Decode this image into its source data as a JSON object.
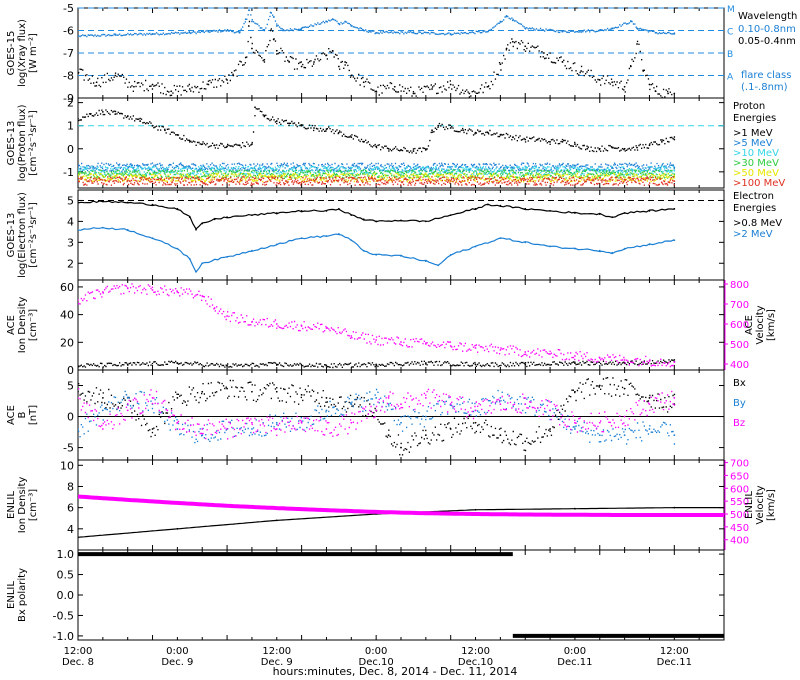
{
  "figure": {
    "footer": "hours:minutes, Dec.  8, 2014 - Dec. 11, 2014",
    "colors": {
      "black": "#000000",
      "blue": "#1a7fd4",
      "magenta": "#ff00ff",
      "cyan": "#33d6e8",
      "green": "#2ecc40",
      "yellow": "#e6e600",
      "orange": "#ff8800",
      "red": "#e03020",
      "dash": "#1f8be0"
    },
    "time_ticks": [
      {
        "hm": "12:00",
        "day": "Dec. 8"
      },
      {
        "hm": "0:00",
        "day": "Dec. 9"
      },
      {
        "hm": "12:00",
        "day": "Dec. 9"
      },
      {
        "hm": "0:00",
        "day": "Dec.10"
      },
      {
        "hm": "12:00",
        "day": "Dec.10"
      },
      {
        "hm": "0:00",
        "day": "Dec.11"
      },
      {
        "hm": "12:00",
        "day": "Dec.11"
      }
    ]
  },
  "chart_data": [
    {
      "type": "line",
      "panel": "goes15-xray",
      "ylabel_lines": [
        "GOES-15",
        "log(Xray flux)",
        "[W m⁻²]"
      ],
      "ylim": [
        -9,
        -5
      ],
      "yticks": [
        -9,
        -8,
        -7,
        -6,
        -5
      ],
      "log_scale": true,
      "flare_class_lines": [
        {
          "label": "A",
          "value": -8
        },
        {
          "label": "B",
          "value": -7
        },
        {
          "label": "C",
          "value": -6
        },
        {
          "label": "M",
          "value": -5
        }
      ],
      "legend": {
        "title": "Wavelength",
        "entries": [
          "0.10-0.8nm",
          "0.05-0.4nm"
        ],
        "note_lines": [
          "flare class",
          "(.1-.8nm)"
        ]
      },
      "x_unit": "hours since Dec. 8 12:00",
      "series": [
        {
          "name": "0.10-0.8nm",
          "color": "blue",
          "x": [
            0,
            6,
            12,
            18,
            21,
            24,
            26,
            27,
            27.5,
            28,
            30,
            31,
            31.5,
            32,
            33,
            36,
            40,
            41,
            42,
            43,
            44,
            46,
            48,
            54,
            60,
            66,
            68,
            69,
            70,
            72,
            78,
            84,
            86,
            89,
            90,
            93,
            96
          ],
          "y": [
            -6.25,
            -6.2,
            -6.15,
            -6.1,
            -6.05,
            -6.0,
            -6.1,
            -5.5,
            -5.1,
            -5.6,
            -6.0,
            -5.2,
            -5.4,
            -5.8,
            -6.0,
            -5.9,
            -5.6,
            -5.5,
            -5.7,
            -5.6,
            -5.8,
            -6.0,
            -6.1,
            -6.1,
            -6.15,
            -6.05,
            -5.6,
            -5.35,
            -5.55,
            -5.9,
            -6.05,
            -6.0,
            -5.9,
            -5.6,
            -5.9,
            -6.1,
            -6.15
          ]
        },
        {
          "name": "0.05-0.4nm",
          "color": "black",
          "x": [
            0,
            3,
            6,
            9,
            12,
            15,
            18,
            21,
            24,
            25,
            27,
            27.5,
            28,
            30,
            31,
            31.5,
            32,
            34,
            36,
            38,
            40,
            41,
            42,
            43,
            44,
            46,
            48,
            51,
            54,
            57,
            60,
            63,
            66,
            68,
            69,
            70,
            72,
            75,
            78,
            81,
            84,
            86,
            88,
            89,
            90,
            91,
            92,
            93,
            95,
            96
          ],
          "y": [
            -7.9,
            -8.3,
            -8.0,
            -8.5,
            -8.4,
            -8.7,
            -8.6,
            -8.4,
            -8.2,
            -8.0,
            -7.2,
            -5.8,
            -6.8,
            -7.3,
            -6.0,
            -6.4,
            -6.9,
            -7.4,
            -7.6,
            -7.4,
            -7.1,
            -6.9,
            -7.6,
            -7.4,
            -8.0,
            -8.3,
            -8.7,
            -8.5,
            -8.8,
            -8.6,
            -8.4,
            -8.8,
            -8.5,
            -7.5,
            -6.8,
            -6.5,
            -6.7,
            -7.0,
            -7.4,
            -7.8,
            -8.2,
            -8.3,
            -8.5,
            -7.6,
            -6.6,
            -7.8,
            -8.4,
            -8.7,
            -8.8,
            -8.8
          ]
        }
      ]
    },
    {
      "type": "scatter",
      "panel": "goes13-proton",
      "ylabel_lines": [
        "GOES-13",
        "log(Proton flux)",
        "[cm⁻²s⁻¹sr⁻¹]"
      ],
      "ylim": [
        -1.7,
        2.2
      ],
      "yticks": [
        -1,
        0,
        1,
        2
      ],
      "reference_line": 1,
      "legend": {
        "title_lines": [
          "Proton",
          "Energies"
        ],
        "entries": [
          ">1 MeV",
          ">5 MeV",
          ">10 MeV",
          ">30 MeV",
          ">50 MeV",
          ">100 MeV"
        ]
      },
      "series": [
        {
          "name": ">1 MeV",
          "color": "black",
          "x": [
            0,
            2,
            4,
            6,
            8,
            10,
            12,
            14,
            16,
            18,
            20,
            22,
            24,
            26,
            28,
            28.5,
            30,
            32,
            34,
            36,
            38,
            40,
            42,
            44,
            46,
            48,
            50,
            52,
            54,
            56,
            57,
            58,
            60,
            62,
            64,
            66,
            68,
            70,
            72,
            74,
            76,
            78,
            80,
            82,
            84,
            86,
            88,
            90,
            92,
            94,
            96
          ],
          "y": [
            1.3,
            1.5,
            1.6,
            1.5,
            1.4,
            1.2,
            1.0,
            0.8,
            0.6,
            0.3,
            0.2,
            0.15,
            0.1,
            0.15,
            0.2,
            1.8,
            1.4,
            1.2,
            1.1,
            1.0,
            0.9,
            0.85,
            0.7,
            0.5,
            0.3,
            0.1,
            0.0,
            -0.05,
            -0.1,
            -0.05,
            0.8,
            1.0,
            0.9,
            0.8,
            0.7,
            0.7,
            0.6,
            0.5,
            0.4,
            0.4,
            0.3,
            0.3,
            0.2,
            0.0,
            0.0,
            0.05,
            0.0,
            0.05,
            0.15,
            0.3,
            0.4
          ]
        },
        {
          "name": ">5 MeV",
          "color": "blue",
          "x": [
            0,
            96
          ],
          "y": [
            -0.8,
            -0.8
          ]
        },
        {
          "name": ">10 MeV",
          "color": "cyan",
          "x": [
            0,
            96
          ],
          "y": [
            -0.95,
            -0.95
          ]
        },
        {
          "name": ">30 MeV",
          "color": "green",
          "x": [
            0,
            96
          ],
          "y": [
            -1.1,
            -1.1
          ]
        },
        {
          "name": ">50 MeV",
          "color": "yellow",
          "x": [
            0,
            96
          ],
          "y": [
            -1.25,
            -1.25
          ]
        },
        {
          "name": ">100 MeV",
          "color": "red",
          "x": [
            0,
            96
          ],
          "y": [
            -1.4,
            -1.4
          ]
        }
      ]
    },
    {
      "type": "line",
      "panel": "goes13-electron",
      "ylabel_lines": [
        "GOES-13",
        "log(Electron flux)",
        "[cm⁻²s⁻¹sr⁻¹]"
      ],
      "ylim": [
        1.2,
        5.5
      ],
      "yticks": [
        2,
        3,
        4,
        5
      ],
      "reference_line": 5,
      "legend": {
        "title_lines": [
          "Electron",
          "Energies"
        ],
        "entries": [
          ">0.8 MeV",
          ">2 MeV"
        ]
      },
      "series": [
        {
          "name": ">0.8 MeV",
          "color": "black",
          "x": [
            0,
            4,
            8,
            12,
            16,
            18,
            19,
            20,
            22,
            24,
            28,
            32,
            36,
            40,
            42,
            44,
            46,
            48,
            52,
            56,
            60,
            64,
            66,
            68,
            72,
            76,
            80,
            84,
            86,
            88,
            92,
            96
          ],
          "y": [
            4.9,
            4.95,
            4.9,
            4.8,
            4.6,
            4.2,
            3.6,
            3.9,
            4.1,
            4.2,
            4.3,
            4.4,
            4.5,
            4.5,
            4.6,
            4.3,
            4.1,
            4.0,
            4.05,
            4.0,
            4.3,
            4.6,
            4.8,
            4.75,
            4.6,
            4.5,
            4.4,
            4.35,
            4.2,
            4.4,
            4.5,
            4.6
          ]
        },
        {
          "name": ">2 MeV",
          "color": "blue",
          "x": [
            0,
            4,
            8,
            12,
            16,
            18,
            19,
            20,
            24,
            28,
            32,
            36,
            40,
            42,
            44,
            46,
            48,
            52,
            56,
            58,
            60,
            64,
            68,
            72,
            76,
            80,
            84,
            86,
            88,
            92,
            96
          ],
          "y": [
            3.6,
            3.7,
            3.6,
            3.2,
            2.7,
            2.2,
            1.6,
            2.0,
            2.3,
            2.6,
            2.9,
            3.2,
            3.3,
            3.4,
            3.1,
            2.6,
            2.4,
            2.35,
            2.1,
            1.9,
            2.4,
            2.8,
            3.2,
            3.0,
            2.8,
            2.7,
            2.6,
            2.5,
            2.7,
            2.9,
            3.1
          ]
        }
      ]
    },
    {
      "type": "scatter",
      "panel": "ace-plasma",
      "ylabel_lines": [
        "ACE",
        "Ion Density",
        "[cm⁻³]"
      ],
      "ylabel_right_lines": [
        "ACE",
        "Velocity",
        "[km/s]"
      ],
      "ylim": [
        0,
        65
      ],
      "yticks": [
        0,
        20,
        40,
        60
      ],
      "ylim_right": [
        370,
        820
      ],
      "yticks_right": [
        400,
        500,
        600,
        700,
        800
      ],
      "series": [
        {
          "name": "Ion Density",
          "color": "black",
          "axis": "left",
          "x": [
            0,
            8,
            16,
            24,
            32,
            40,
            48,
            56,
            64,
            72,
            80,
            88,
            96
          ],
          "y": [
            3,
            4,
            5,
            3,
            4,
            3,
            4,
            5,
            4,
            4,
            5,
            5,
            6
          ]
        },
        {
          "name": "Velocity",
          "color": "magenta",
          "axis": "right",
          "x": [
            0,
            4,
            8,
            12,
            16,
            20,
            22,
            24,
            28,
            32,
            36,
            40,
            44,
            48,
            52,
            56,
            60,
            64,
            68,
            72,
            76,
            80,
            84,
            88,
            92,
            96
          ],
          "y": [
            720,
            760,
            780,
            770,
            760,
            740,
            680,
            640,
            610,
            600,
            590,
            580,
            540,
            520,
            510,
            500,
            490,
            480,
            470,
            460,
            450,
            440,
            430,
            420,
            415,
            410
          ]
        }
      ]
    },
    {
      "type": "scatter",
      "panel": "ace-magnetic-field",
      "ylabel_lines": [
        "ACE",
        "B",
        "[nT]"
      ],
      "ylim": [
        -7,
        7.5
      ],
      "yticks": [
        -5,
        0,
        5
      ],
      "zero_line": true,
      "legend": {
        "entries": [
          "Bx",
          "By",
          "Bz"
        ]
      },
      "series": [
        {
          "name": "Bx",
          "color": "black",
          "x": [
            0,
            4,
            8,
            12,
            16,
            20,
            24,
            28,
            32,
            36,
            40,
            44,
            48,
            50,
            52,
            56,
            60,
            64,
            68,
            72,
            76,
            80,
            84,
            88,
            92,
            96
          ],
          "y": [
            4,
            3,
            2,
            -2,
            3,
            4,
            4.5,
            4,
            4,
            3.5,
            3,
            2,
            1,
            -3,
            -5,
            -3,
            -2,
            -1,
            -3,
            -4,
            -2,
            4,
            5,
            4.5,
            3,
            2
          ]
        },
        {
          "name": "By",
          "color": "blue",
          "x": [
            0,
            4,
            8,
            12,
            16,
            20,
            24,
            28,
            32,
            36,
            40,
            44,
            48,
            50,
            52,
            56,
            60,
            64,
            68,
            72,
            76,
            80,
            84,
            88,
            92,
            96
          ],
          "y": [
            -2,
            1,
            3,
            2,
            -2,
            -3,
            -2,
            -2,
            -1,
            -1,
            1,
            2,
            3,
            2,
            -1,
            0,
            2,
            1,
            3,
            2,
            1,
            -2,
            -3,
            -3,
            -2,
            -3
          ]
        },
        {
          "name": "Bz",
          "color": "magenta",
          "x": [
            0,
            4,
            8,
            12,
            16,
            20,
            24,
            28,
            32,
            36,
            40,
            44,
            48,
            50,
            52,
            56,
            60,
            64,
            68,
            72,
            76,
            80,
            84,
            88,
            92,
            96
          ],
          "y": [
            3,
            -2,
            1,
            3,
            -1,
            -2,
            -2,
            -1,
            -2,
            -1,
            -2,
            -1,
            1,
            3,
            2,
            3,
            2,
            1,
            2,
            2,
            1,
            -1,
            -1,
            0,
            2,
            3
          ]
        }
      ]
    },
    {
      "type": "line",
      "panel": "enlil-plasma",
      "ylabel_lines": [
        "ENLIL",
        "Ion Density",
        "[cm⁻³]"
      ],
      "ylabel_right_lines": [
        "ENLIL",
        "Velocity",
        "[km/s]"
      ],
      "ylim": [
        2,
        10.5
      ],
      "yticks": [
        4,
        6,
        8,
        10
      ],
      "ylim_right": [
        360,
        710
      ],
      "yticks_right": [
        400,
        450,
        500,
        550,
        600,
        650,
        700
      ],
      "series": [
        {
          "name": "Ion Density",
          "color": "black",
          "axis": "left",
          "x": [
            0,
            16,
            32,
            48,
            64,
            80,
            96,
            104
          ],
          "y": [
            3.2,
            4.0,
            4.8,
            5.4,
            5.8,
            5.9,
            6.0,
            6.0
          ]
        },
        {
          "name": "Velocity",
          "color": "magenta",
          "axis": "right",
          "x": [
            0,
            8,
            16,
            24,
            32,
            40,
            48,
            56,
            64,
            72,
            80,
            88,
            96,
            104
          ],
          "y": [
            568,
            555,
            543,
            532,
            523,
            515,
            508,
            503,
            500,
            498,
            497,
            496,
            496,
            496
          ]
        }
      ]
    },
    {
      "type": "line",
      "panel": "enlil-polarity",
      "ylabel_lines": [
        "ENLIL",
        "Bx polarity"
      ],
      "ylim": [
        -1.1,
        1.1
      ],
      "yticks": [
        -1.0,
        -0.5,
        0.0,
        0.5,
        1.0
      ],
      "ytick_labels": [
        "-1.0",
        "-0.5",
        "0.0",
        "0.5",
        "1.0"
      ],
      "series": [
        {
          "name": "Bx polarity",
          "color": "black",
          "segments": [
            {
              "x": [
                0,
                70
              ],
              "y": [
                1.0,
                1.0
              ]
            },
            {
              "x": [
                70,
                104
              ],
              "y": [
                -1.0,
                -1.0
              ]
            }
          ]
        }
      ]
    }
  ]
}
